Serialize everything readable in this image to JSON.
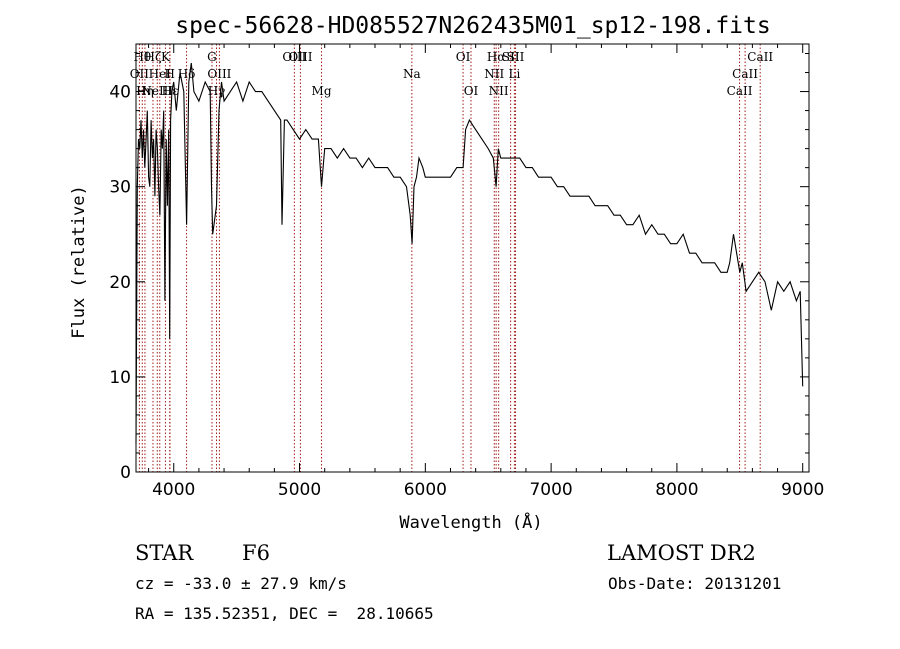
{
  "chart_data": {
    "type": "line",
    "title": "spec-56628-HD085527N262435M01_sp12-198.fits",
    "xlabel": "Wavelength (Å)",
    "ylabel": "Flux (relative)",
    "xlim": [
      3700,
      9050
    ],
    "ylim": [
      0,
      45
    ],
    "xticks": [
      4000,
      5000,
      6000,
      7000,
      8000,
      9000
    ],
    "yticks": [
      0,
      10,
      20,
      30,
      40
    ],
    "grid": false,
    "line_color": "#000000",
    "marker_color": "#a0201c",
    "series": [
      {
        "x": [
          3700,
          3710,
          3720,
          3730,
          3740,
          3750,
          3760,
          3770,
          3780,
          3790,
          3800,
          3810,
          3820,
          3830,
          3840,
          3850,
          3860,
          3870,
          3880,
          3890,
          3900,
          3910,
          3920,
          3930,
          3940,
          3950,
          3960,
          3968,
          3975,
          3985,
          4000,
          4020,
          4050,
          4080,
          4102,
          4120,
          4140,
          4160,
          4200,
          4250,
          4290,
          4300,
          4310,
          4340,
          4360,
          4380,
          4400,
          4450,
          4500,
          4550,
          4600,
          4650,
          4700,
          4750,
          4800,
          4850,
          4861,
          4880,
          4900,
          4950,
          5000,
          5050,
          5100,
          5150,
          5175,
          5200,
          5250,
          5300,
          5350,
          5400,
          5450,
          5500,
          5550,
          5600,
          5650,
          5700,
          5750,
          5800,
          5850,
          5880,
          5895,
          5910,
          5930,
          5950,
          5980,
          6000,
          6050,
          6100,
          6150,
          6200,
          6250,
          6280,
          6300,
          6320,
          6350,
          6400,
          6450,
          6500,
          6540,
          6563,
          6580,
          6600,
          6650,
          6700,
          6750,
          6800,
          6850,
          6900,
          6950,
          7000,
          7050,
          7100,
          7150,
          7200,
          7250,
          7300,
          7350,
          7400,
          7450,
          7500,
          7550,
          7600,
          7650,
          7700,
          7750,
          7800,
          7850,
          7900,
          7950,
          8000,
          8050,
          8100,
          8150,
          8200,
          8250,
          8300,
          8350,
          8400,
          8420,
          8450,
          8500,
          8520,
          8550,
          8600,
          8650,
          8700,
          8750,
          8800,
          8850,
          8900,
          8950,
          8980,
          9000
        ],
        "y": [
          3,
          30,
          35,
          34,
          37,
          33,
          36,
          32,
          35,
          38,
          31,
          30,
          37,
          33,
          35,
          29,
          36,
          34,
          30,
          27,
          36,
          34,
          38,
          18,
          35,
          28,
          36,
          14,
          37,
          40,
          41,
          38,
          42,
          40,
          26,
          41,
          43,
          40,
          39,
          41,
          40,
          30,
          25,
          28,
          38,
          41,
          39,
          40,
          41,
          39,
          41,
          40,
          40,
          39,
          38,
          37,
          26,
          37,
          37,
          36,
          35,
          36,
          35,
          35,
          30,
          34,
          34,
          33,
          34,
          33,
          33,
          32,
          33,
          32,
          32,
          32,
          31,
          31,
          30,
          27,
          24,
          30,
          31,
          33,
          32,
          31,
          31,
          31,
          31,
          31,
          32,
          32,
          32,
          36,
          37,
          36,
          35,
          34,
          33,
          30,
          34,
          33,
          33,
          33,
          33,
          32,
          32,
          31,
          31,
          31,
          30,
          30,
          29,
          29,
          29,
          29,
          28,
          28,
          28,
          27,
          27,
          26,
          26,
          27,
          25,
          26,
          25,
          25,
          24,
          24,
          25,
          23,
          23,
          22,
          22,
          22,
          21,
          21,
          22,
          25,
          21,
          22,
          19,
          20,
          21,
          20,
          17,
          20,
          19,
          20,
          18,
          19,
          9
        ]
      }
    ],
    "annotations": {
      "lines": [
        {
          "wavelength": 3727,
          "name": "OII",
          "row": 1
        },
        {
          "wavelength": 3750,
          "name": "Hθ",
          "row": 0
        },
        {
          "wavelength": 3771,
          "name": "Hη",
          "row": 2
        },
        {
          "wavelength": 3835,
          "name": "Hζ",
          "row": 0
        },
        {
          "wavelength": 3869,
          "name": "NeIII",
          "row": 2
        },
        {
          "wavelength": 3889,
          "name": "HeI",
          "row": 1
        },
        {
          "wavelength": 3934,
          "name": "K",
          "row": 0
        },
        {
          "wavelength": 3968,
          "name": "H",
          "row": 1
        },
        {
          "wavelength": 3970,
          "name": "Hε",
          "row": 2
        },
        {
          "wavelength": 4102,
          "name": "Hδ",
          "row": 1
        },
        {
          "wavelength": 4304,
          "name": "G",
          "row": 0
        },
        {
          "wavelength": 4340,
          "name": "Hγ",
          "row": 2
        },
        {
          "wavelength": 4363,
          "name": "OIII",
          "row": 1
        },
        {
          "wavelength": 4959,
          "name": "OIII",
          "row": 0
        },
        {
          "wavelength": 5007,
          "name": "OIII",
          "row": 0
        },
        {
          "wavelength": 5175,
          "name": "Mg",
          "row": 2
        },
        {
          "wavelength": 5893,
          "name": "Na",
          "row": 1
        },
        {
          "wavelength": 6300,
          "name": "OI",
          "row": 0
        },
        {
          "wavelength": 6363,
          "name": "OI",
          "row": 2
        },
        {
          "wavelength": 6548,
          "name": "NII",
          "row": 1
        },
        {
          "wavelength": 6563,
          "name": "Hα",
          "row": 0
        },
        {
          "wavelength": 6583,
          "name": "NII",
          "row": 2
        },
        {
          "wavelength": 6678,
          "name": "SII",
          "row": 0
        },
        {
          "wavelength": 6708,
          "name": "Li",
          "row": 1
        },
        {
          "wavelength": 6717,
          "name": "SII",
          "row": 0
        },
        {
          "wavelength": 8498,
          "name": "CaII",
          "row": 2
        },
        {
          "wavelength": 8542,
          "name": "CaII",
          "row": 1
        },
        {
          "wavelength": 8662,
          "name": "CaII",
          "row": 0
        }
      ]
    }
  },
  "info": {
    "object_class": "STAR",
    "subclass": "F6",
    "survey": "LAMOST DR2",
    "cz": "cz = -33.0 ± 27.9 km/s",
    "obs_date": "Obs-Date: 20131201",
    "coords": "RA = 135.52351, DEC =  28.10665"
  }
}
